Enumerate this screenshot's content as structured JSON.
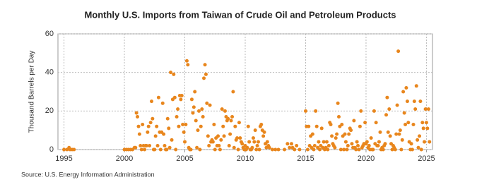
{
  "chart_data": {
    "type": "scatter",
    "title": "Monthly U.S. Imports from Taiwan of Crude Oil and Petroleum Products",
    "y_label": "Thousand Barrels per Day",
    "source": "Source: U.S. Energy Information Administration",
    "xlim": [
      1994.5,
      2025.5
    ],
    "xticks": [
      1995,
      2000,
      2005,
      2010,
      2015,
      2020,
      2025
    ],
    "ylim": [
      0,
      60
    ],
    "yticks": [
      0,
      20,
      40,
      60
    ],
    "grid": true,
    "series": [
      {
        "color": "#e8861d",
        "x": [
          1995.0,
          1995.25,
          1995.42,
          1995.5,
          1995.67,
          1995.83,
          2000.0,
          2000.17,
          2000.33,
          2000.5,
          2000.67,
          2000.83,
          2000.92,
          2001.0,
          2001.08,
          2001.17,
          2001.25,
          2001.33,
          2001.42,
          2001.5,
          2001.58,
          2001.67,
          2001.75,
          2001.83,
          2001.92,
          2002.0,
          2002.08,
          2002.17,
          2002.25,
          2002.33,
          2002.42,
          2002.5,
          2002.58,
          2002.67,
          2002.75,
          2002.83,
          2002.92,
          2003.0,
          2003.08,
          2003.17,
          2003.25,
          2003.33,
          2003.42,
          2003.5,
          2003.58,
          2003.67,
          2003.75,
          2003.83,
          2003.92,
          2004.0,
          2004.08,
          2004.17,
          2004.25,
          2004.33,
          2004.42,
          2004.5,
          2004.58,
          2004.67,
          2004.75,
          2004.83,
          2004.92,
          2005.0,
          2005.08,
          2005.17,
          2005.25,
          2005.33,
          2005.42,
          2005.5,
          2005.58,
          2005.67,
          2005.75,
          2005.83,
          2005.92,
          2006.0,
          2006.08,
          2006.17,
          2006.25,
          2006.33,
          2006.42,
          2006.5,
          2006.58,
          2006.67,
          2006.75,
          2006.83,
          2006.92,
          2007.0,
          2007.08,
          2007.17,
          2007.25,
          2007.33,
          2007.42,
          2007.5,
          2007.58,
          2007.67,
          2007.75,
          2007.83,
          2007.92,
          2008.0,
          2008.08,
          2008.17,
          2008.25,
          2008.33,
          2008.42,
          2008.5,
          2008.58,
          2008.67,
          2008.75,
          2008.83,
          2008.92,
          2009.0,
          2009.08,
          2009.17,
          2009.25,
          2009.33,
          2009.42,
          2009.5,
          2009.58,
          2009.67,
          2009.75,
          2009.83,
          2009.92,
          2010.0,
          2010.08,
          2010.17,
          2010.25,
          2010.33,
          2010.42,
          2010.5,
          2010.58,
          2010.67,
          2010.75,
          2010.83,
          2010.92,
          2011.0,
          2011.08,
          2011.17,
          2011.25,
          2011.33,
          2011.42,
          2011.5,
          2011.58,
          2011.67,
          2011.75,
          2011.83,
          2011.92,
          2012.0,
          2012.25,
          2012.5,
          2012.75,
          2013.25,
          2013.5,
          2013.67,
          2013.83,
          2013.92,
          2014.08,
          2014.25,
          2014.5,
          2015.0,
          2015.08,
          2015.17,
          2015.25,
          2015.33,
          2015.42,
          2015.5,
          2015.58,
          2015.67,
          2015.75,
          2015.83,
          2015.92,
          2016.0,
          2016.08,
          2016.17,
          2016.25,
          2016.33,
          2016.42,
          2016.5,
          2016.58,
          2016.67,
          2016.75,
          2016.83,
          2016.92,
          2017.0,
          2017.08,
          2017.17,
          2017.25,
          2017.33,
          2017.42,
          2017.5,
          2017.58,
          2017.67,
          2017.75,
          2017.83,
          2017.92,
          2018.0,
          2018.08,
          2018.17,
          2018.25,
          2018.33,
          2018.42,
          2018.5,
          2018.58,
          2018.67,
          2018.75,
          2018.83,
          2018.92,
          2019.0,
          2019.08,
          2019.17,
          2019.25,
          2019.33,
          2019.42,
          2019.5,
          2019.58,
          2019.67,
          2019.75,
          2019.83,
          2019.92,
          2020.0,
          2020.08,
          2020.17,
          2020.25,
          2020.33,
          2020.42,
          2020.5,
          2020.58,
          2020.67,
          2020.75,
          2020.83,
          2020.92,
          2021.0,
          2021.08,
          2021.17,
          2021.25,
          2021.33,
          2021.42,
          2021.5,
          2021.58,
          2021.67,
          2021.75,
          2021.83,
          2021.92,
          2022.0,
          2022.08,
          2022.17,
          2022.25,
          2022.33,
          2022.42,
          2022.5,
          2022.58,
          2022.67,
          2022.75,
          2022.83,
          2022.92,
          2023.0,
          2023.08,
          2023.17,
          2023.25,
          2023.33,
          2023.42,
          2023.5,
          2023.58,
          2023.67,
          2023.75,
          2023.83,
          2023.92,
          2024.0,
          2024.08,
          2024.17,
          2024.25,
          2024.33,
          2024.42,
          2024.5,
          2024.58,
          2024.67,
          2024.75,
          2024.83,
          2024.92,
          2025.0,
          2025.08,
          2025.17,
          2025.25
        ],
        "values": [
          0,
          0,
          1,
          0,
          0,
          0,
          0,
          0,
          0,
          0,
          0,
          1,
          1,
          19,
          17,
          12,
          8,
          2,
          0,
          13,
          2,
          0,
          2,
          2,
          9,
          12,
          2,
          14,
          25,
          16,
          0,
          0,
          7,
          12,
          2,
          27,
          9,
          0,
          9,
          24,
          8,
          2,
          0,
          0,
          16,
          11,
          1,
          40,
          5,
          26,
          39,
          27,
          0,
          17,
          21,
          12,
          28,
          26,
          28,
          13,
          9,
          4,
          13,
          46,
          44,
          1,
          0,
          0,
          26,
          19,
          22,
          30,
          15,
          1,
          10,
          20,
          0,
          12,
          21,
          17,
          37,
          44,
          39,
          24,
          7,
          2,
          23,
          4,
          5,
          4,
          13,
          0,
          6,
          2,
          7,
          2,
          0,
          5,
          21,
          12,
          7,
          20,
          17,
          15,
          16,
          2,
          8,
          15,
          17,
          30,
          1,
          12,
          5,
          6,
          0,
          14,
          6,
          4,
          3,
          1,
          0,
          2,
          0,
          1,
          12,
          4,
          0,
          0,
          1,
          6,
          4,
          10,
          0,
          2,
          4,
          0,
          12,
          13,
          10,
          7,
          9,
          3,
          1,
          4,
          2,
          1,
          0,
          0,
          0,
          0,
          3,
          1,
          3,
          1,
          0,
          2,
          0,
          20,
          12,
          0,
          12,
          2,
          7,
          1,
          8,
          0,
          2,
          20,
          12,
          1,
          4,
          0,
          2,
          11,
          1,
          4,
          0,
          1,
          4,
          0,
          2,
          14,
          13,
          7,
          3,
          2,
          1,
          6,
          8,
          24,
          17,
          12,
          0,
          13,
          7,
          0,
          8,
          4,
          0,
          2,
          8,
          11,
          10,
          3,
          1,
          15,
          1,
          0,
          4,
          2,
          0,
          12,
          20,
          1,
          2,
          3,
          14,
          3,
          4,
          1,
          2,
          0,
          6,
          0,
          0,
          20,
          3,
          14,
          2,
          2,
          4,
          9,
          0,
          1,
          0,
          2,
          3,
          18,
          27,
          9,
          21,
          7,
          3,
          0,
          2,
          1,
          0,
          8,
          23,
          51,
          8,
          10,
          0,
          5,
          30,
          19,
          13,
          32,
          25,
          14,
          4,
          0,
          3,
          0,
          13,
          25,
          21,
          33,
          5,
          1,
          7,
          25,
          0,
          14,
          11,
          4,
          21,
          14,
          11,
          21,
          4
        ]
      }
    ]
  }
}
